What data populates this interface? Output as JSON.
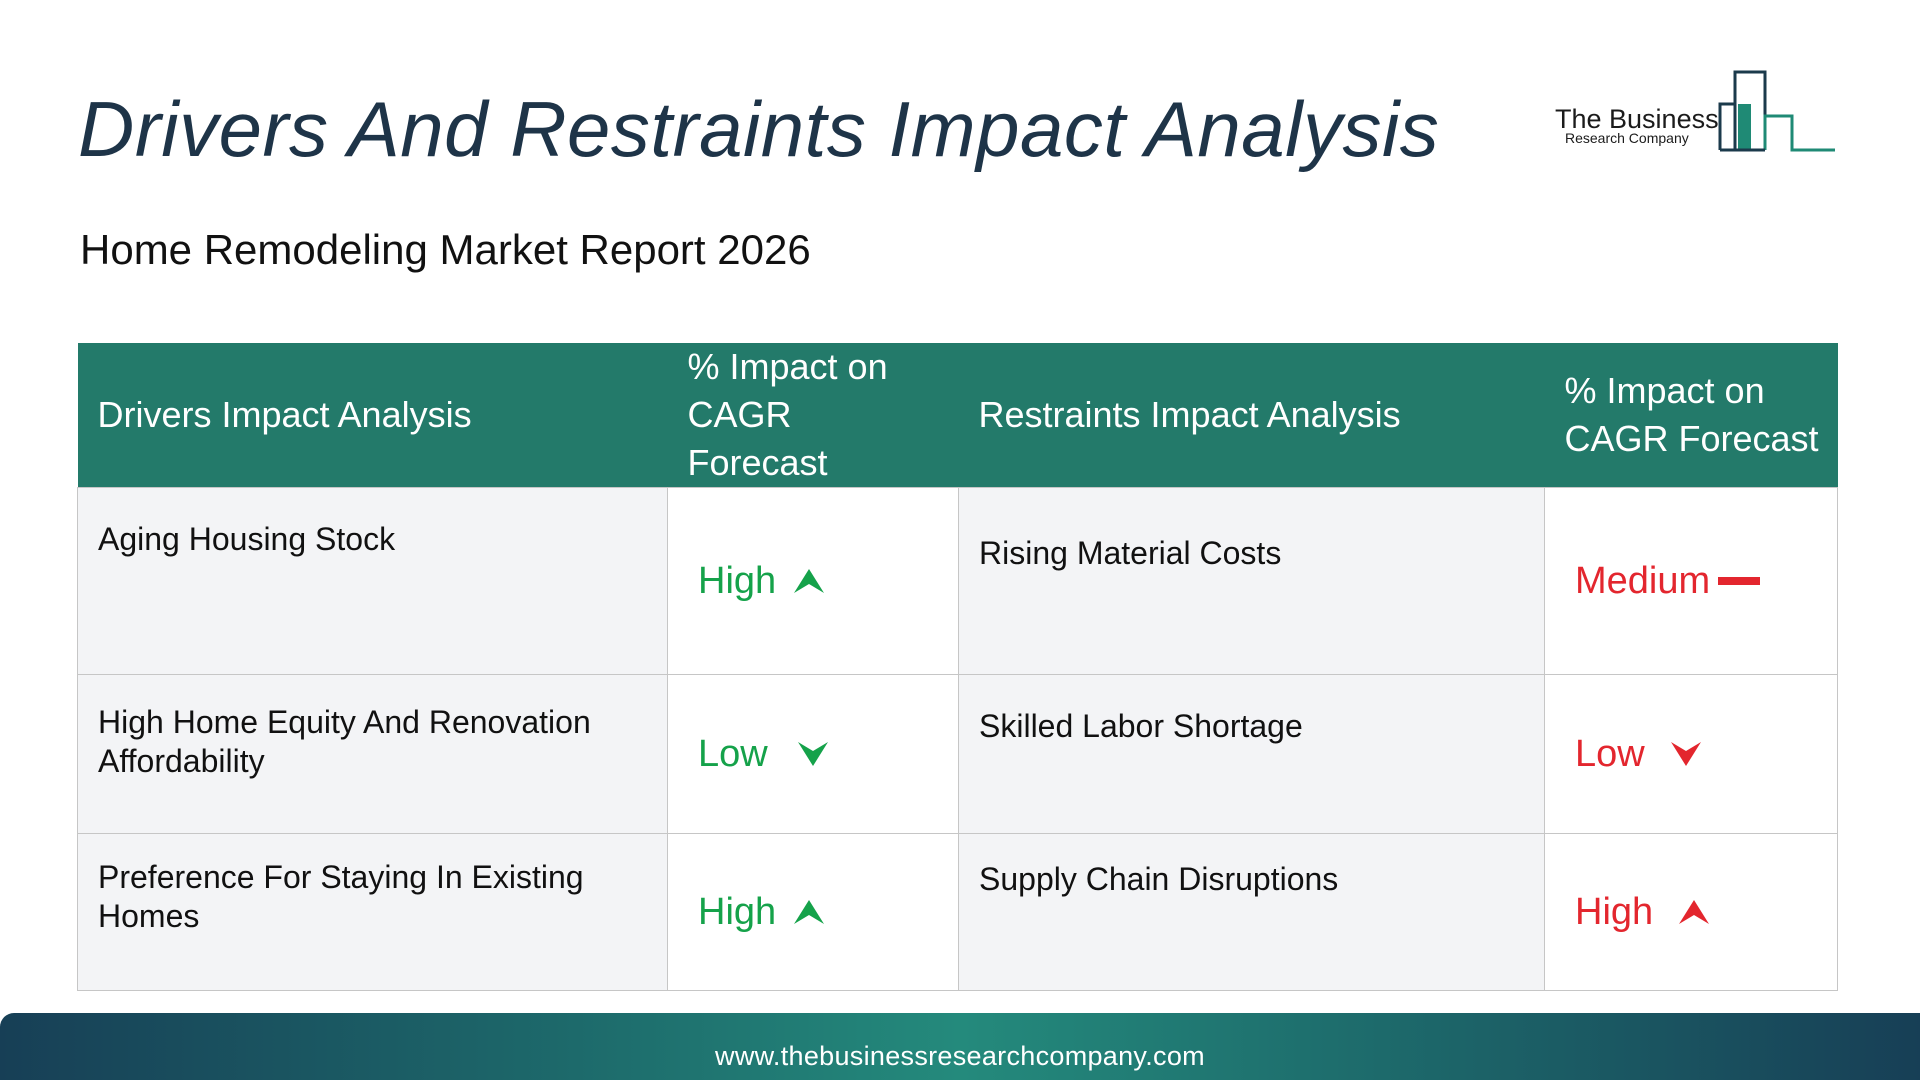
{
  "title": "Drivers And Restraints Impact Analysis",
  "subtitle": "Home Remodeling Market Report 2026",
  "logo": {
    "line1": "The Business",
    "line2": "Research Company",
    "accent": "#1f8a75"
  },
  "table": {
    "headers": {
      "drivers": "Drivers Impact Analysis",
      "driver_impact": "% Impact on CAGR Forecast",
      "restraints": "Restraints Impact Analysis",
      "restraint_impact": "% Impact on CAGR Forecast"
    },
    "rows": [
      {
        "driver": "Aging Housing Stock",
        "driver_impact": "High",
        "driver_icon": "arrow-up-icon",
        "restraint": "Rising Material Costs",
        "restraint_impact": "Medium",
        "restraint_icon": "dash-icon"
      },
      {
        "driver": "High Home Equity And Renovation Affordability",
        "driver_impact": "Low",
        "driver_icon": "arrow-down-icon",
        "restraint": "Skilled Labor Shortage",
        "restraint_impact": "Low",
        "restraint_icon": "arrow-down-icon"
      },
      {
        "driver": "Preference For Staying In Existing Homes",
        "driver_impact": "High",
        "driver_icon": "arrow-up-icon",
        "restraint": "Supply Chain Disruptions",
        "restraint_impact": "High",
        "restraint_icon": "arrow-up-icon"
      }
    ],
    "colors": {
      "header_bg": "#237a6a",
      "driver_impact": "#15a24a",
      "restraint_impact": "#e3262e"
    }
  },
  "footer": {
    "url": "www.thebusinessresearchcompany.com"
  }
}
